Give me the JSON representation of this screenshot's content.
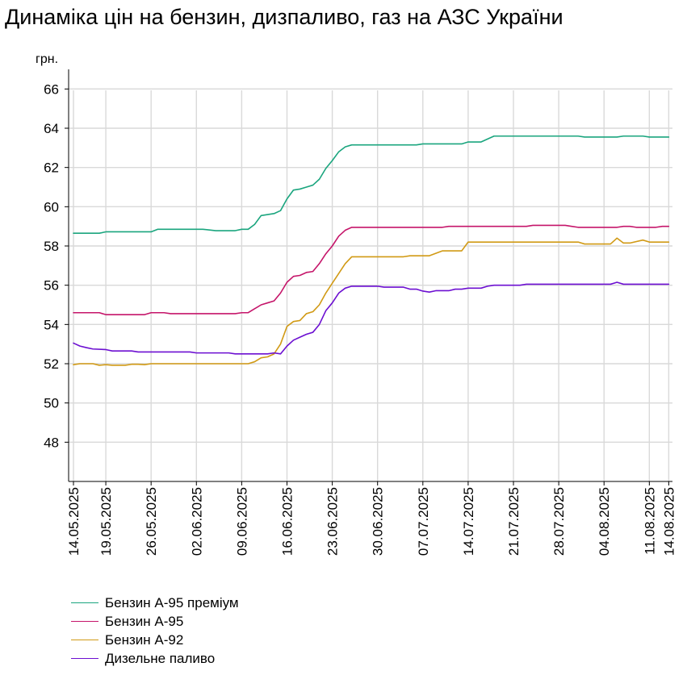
{
  "title": "Динаміка цін на бензин, дизпаливо, газ на АЗС України",
  "chart_data": {
    "type": "line",
    "ylabel": "грн.",
    "ylim": [
      46,
      67
    ],
    "yticks": [
      48,
      50,
      52,
      54,
      56,
      58,
      60,
      62,
      64,
      66
    ],
    "xlim": [
      "2025-05-13",
      "2025-08-14"
    ],
    "xticks": [
      "14.05.2025",
      "19.05.2025",
      "26.05.2025",
      "02.06.2025",
      "09.06.2025",
      "16.06.2025",
      "23.06.2025",
      "30.06.2025",
      "07.07.2025",
      "14.07.2025",
      "21.07.2025",
      "28.07.2025",
      "04.08.2025",
      "11.08.2025",
      "14.08.2025"
    ],
    "grid": true,
    "legend_position": "bottom-left",
    "series": [
      {
        "name": "Бензин А-95 преміум",
        "color": "#1aa57e",
        "points": [
          [
            "2025-05-14",
            58.65
          ],
          [
            "2025-05-18",
            58.65
          ],
          [
            "2025-05-19",
            58.72
          ],
          [
            "2025-05-26",
            58.72
          ],
          [
            "2025-05-27",
            58.85
          ],
          [
            "2025-06-03",
            58.85
          ],
          [
            "2025-06-05",
            58.78
          ],
          [
            "2025-06-08",
            58.78
          ],
          [
            "2025-06-09",
            58.85
          ],
          [
            "2025-06-10",
            58.85
          ],
          [
            "2025-06-11",
            59.1
          ],
          [
            "2025-06-12",
            59.55
          ],
          [
            "2025-06-13",
            59.6
          ],
          [
            "2025-06-14",
            59.65
          ],
          [
            "2025-06-15",
            59.8
          ],
          [
            "2025-06-16",
            60.4
          ],
          [
            "2025-06-17",
            60.85
          ],
          [
            "2025-06-18",
            60.9
          ],
          [
            "2025-06-19",
            61.0
          ],
          [
            "2025-06-20",
            61.1
          ],
          [
            "2025-06-21",
            61.4
          ],
          [
            "2025-06-22",
            61.95
          ],
          [
            "2025-06-23",
            62.35
          ],
          [
            "2025-06-24",
            62.8
          ],
          [
            "2025-06-25",
            63.05
          ],
          [
            "2025-06-26",
            63.15
          ],
          [
            "2025-07-06",
            63.15
          ],
          [
            "2025-07-07",
            63.2
          ],
          [
            "2025-07-13",
            63.2
          ],
          [
            "2025-07-14",
            63.3
          ],
          [
            "2025-07-16",
            63.3
          ],
          [
            "2025-07-17",
            63.45
          ],
          [
            "2025-07-18",
            63.6
          ],
          [
            "2025-07-31",
            63.6
          ],
          [
            "2025-08-01",
            63.55
          ],
          [
            "2025-08-06",
            63.55
          ],
          [
            "2025-08-07",
            63.6
          ],
          [
            "2025-08-10",
            63.6
          ],
          [
            "2025-08-11",
            63.55
          ],
          [
            "2025-08-14",
            63.55
          ]
        ]
      },
      {
        "name": "Бензин А-95",
        "color": "#c5156a",
        "points": [
          [
            "2025-05-14",
            54.6
          ],
          [
            "2025-05-18",
            54.6
          ],
          [
            "2025-05-19",
            54.5
          ],
          [
            "2025-05-25",
            54.5
          ],
          [
            "2025-05-26",
            54.6
          ],
          [
            "2025-05-28",
            54.6
          ],
          [
            "2025-05-29",
            54.55
          ],
          [
            "2025-06-08",
            54.55
          ],
          [
            "2025-06-09",
            54.6
          ],
          [
            "2025-06-10",
            54.6
          ],
          [
            "2025-06-11",
            54.8
          ],
          [
            "2025-06-12",
            55.0
          ],
          [
            "2025-06-13",
            55.1
          ],
          [
            "2025-06-14",
            55.2
          ],
          [
            "2025-06-15",
            55.6
          ],
          [
            "2025-06-16",
            56.15
          ],
          [
            "2025-06-17",
            56.45
          ],
          [
            "2025-06-18",
            56.5
          ],
          [
            "2025-06-19",
            56.65
          ],
          [
            "2025-06-20",
            56.7
          ],
          [
            "2025-06-21",
            57.1
          ],
          [
            "2025-06-22",
            57.6
          ],
          [
            "2025-06-23",
            58.0
          ],
          [
            "2025-06-24",
            58.5
          ],
          [
            "2025-06-25",
            58.8
          ],
          [
            "2025-06-26",
            58.95
          ],
          [
            "2025-07-10",
            58.95
          ],
          [
            "2025-07-11",
            59.0
          ],
          [
            "2025-07-23",
            59.0
          ],
          [
            "2025-07-24",
            59.05
          ],
          [
            "2025-07-29",
            59.05
          ],
          [
            "2025-07-30",
            59.0
          ],
          [
            "2025-07-31",
            58.95
          ],
          [
            "2025-08-06",
            58.95
          ],
          [
            "2025-08-07",
            59.0
          ],
          [
            "2025-08-08",
            59.0
          ],
          [
            "2025-08-09",
            58.95
          ],
          [
            "2025-08-12",
            58.95
          ],
          [
            "2025-08-13",
            59.0
          ],
          [
            "2025-08-14",
            59.0
          ]
        ]
      },
      {
        "name": "Бензин А-92",
        "color": "#d19a15",
        "points": [
          [
            "2025-05-14",
            51.95
          ],
          [
            "2025-05-15",
            52.0
          ],
          [
            "2025-05-17",
            52.0
          ],
          [
            "2025-05-18",
            51.92
          ],
          [
            "2025-05-19",
            51.95
          ],
          [
            "2025-05-20",
            51.92
          ],
          [
            "2025-05-22",
            51.92
          ],
          [
            "2025-05-23",
            51.97
          ],
          [
            "2025-05-24",
            51.97
          ],
          [
            "2025-05-25",
            51.95
          ],
          [
            "2025-05-26",
            52.0
          ],
          [
            "2025-06-10",
            52.0
          ],
          [
            "2025-06-11",
            52.1
          ],
          [
            "2025-06-12",
            52.3
          ],
          [
            "2025-06-13",
            52.35
          ],
          [
            "2025-06-14",
            52.5
          ],
          [
            "2025-06-15",
            53.0
          ],
          [
            "2025-06-16",
            53.9
          ],
          [
            "2025-06-17",
            54.15
          ],
          [
            "2025-06-18",
            54.2
          ],
          [
            "2025-06-19",
            54.55
          ],
          [
            "2025-06-20",
            54.65
          ],
          [
            "2025-06-21",
            55.0
          ],
          [
            "2025-06-22",
            55.6
          ],
          [
            "2025-06-23",
            56.1
          ],
          [
            "2025-06-24",
            56.6
          ],
          [
            "2025-06-25",
            57.1
          ],
          [
            "2025-06-26",
            57.45
          ],
          [
            "2025-07-04",
            57.45
          ],
          [
            "2025-07-05",
            57.5
          ],
          [
            "2025-07-08",
            57.5
          ],
          [
            "2025-07-10",
            57.75
          ],
          [
            "2025-07-13",
            57.75
          ],
          [
            "2025-07-14",
            58.2
          ],
          [
            "2025-07-31",
            58.2
          ],
          [
            "2025-08-01",
            58.1
          ],
          [
            "2025-08-05",
            58.1
          ],
          [
            "2025-08-06",
            58.4
          ],
          [
            "2025-08-07",
            58.15
          ],
          [
            "2025-08-08",
            58.15
          ],
          [
            "2025-08-10",
            58.3
          ],
          [
            "2025-08-11",
            58.2
          ],
          [
            "2025-08-14",
            58.2
          ]
        ]
      },
      {
        "name": "Дизельне паливо",
        "color": "#6c0fd1",
        "points": [
          [
            "2025-05-14",
            53.05
          ],
          [
            "2025-05-15",
            52.9
          ],
          [
            "2025-05-16",
            52.82
          ],
          [
            "2025-05-17",
            52.75
          ],
          [
            "2025-05-19",
            52.72
          ],
          [
            "2025-05-20",
            52.65
          ],
          [
            "2025-05-23",
            52.65
          ],
          [
            "2025-05-24",
            52.6
          ],
          [
            "2025-06-01",
            52.6
          ],
          [
            "2025-06-02",
            52.55
          ],
          [
            "2025-06-07",
            52.55
          ],
          [
            "2025-06-08",
            52.5
          ],
          [
            "2025-06-13",
            52.5
          ],
          [
            "2025-06-14",
            52.55
          ],
          [
            "2025-06-15",
            52.5
          ],
          [
            "2025-06-16",
            52.9
          ],
          [
            "2025-06-17",
            53.2
          ],
          [
            "2025-06-18",
            53.35
          ],
          [
            "2025-06-19",
            53.5
          ],
          [
            "2025-06-20",
            53.6
          ],
          [
            "2025-06-21",
            54.0
          ],
          [
            "2025-06-22",
            54.7
          ],
          [
            "2025-06-23",
            55.1
          ],
          [
            "2025-06-24",
            55.6
          ],
          [
            "2025-06-25",
            55.85
          ],
          [
            "2025-06-26",
            55.95
          ],
          [
            "2025-06-30",
            55.95
          ],
          [
            "2025-07-01",
            55.9
          ],
          [
            "2025-07-04",
            55.9
          ],
          [
            "2025-07-05",
            55.8
          ],
          [
            "2025-07-06",
            55.8
          ],
          [
            "2025-07-07",
            55.7
          ],
          [
            "2025-07-08",
            55.65
          ],
          [
            "2025-07-09",
            55.72
          ],
          [
            "2025-07-11",
            55.72
          ],
          [
            "2025-07-12",
            55.8
          ],
          [
            "2025-07-13",
            55.8
          ],
          [
            "2025-07-14",
            55.85
          ],
          [
            "2025-07-16",
            55.85
          ],
          [
            "2025-07-17",
            55.95
          ],
          [
            "2025-07-18",
            56.0
          ],
          [
            "2025-07-22",
            56.0
          ],
          [
            "2025-07-23",
            56.05
          ],
          [
            "2025-08-05",
            56.05
          ],
          [
            "2025-08-06",
            56.15
          ],
          [
            "2025-08-07",
            56.05
          ],
          [
            "2025-08-14",
            56.05
          ]
        ]
      }
    ]
  }
}
